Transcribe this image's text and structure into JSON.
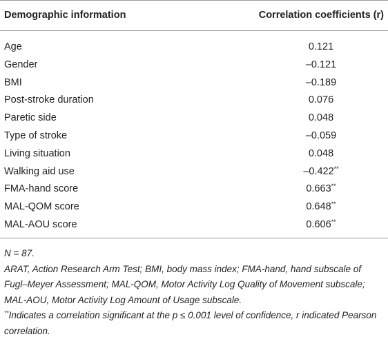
{
  "table": {
    "header": [
      "Demographic information",
      "Correlation coefficients (r)"
    ],
    "rows": [
      {
        "label": "Age",
        "value": "0.121"
      },
      {
        "label": "Gender",
        "value": "–0.121"
      },
      {
        "label": "BMI",
        "value": "–0.189"
      },
      {
        "label": "Post-stroke duration",
        "value": "0.076"
      },
      {
        "label": "Paretic side",
        "value": "0.048"
      },
      {
        "label": "Type of stroke",
        "value": "–0.059"
      },
      {
        "label": "Living situation",
        "value": "0.048"
      },
      {
        "label": "Walking aid use",
        "value": "–0.422",
        "sig": "**"
      },
      {
        "label": "FMA-hand score",
        "value": "0.663",
        "sig": "**"
      },
      {
        "label": "MAL-QOM score",
        "value": "0.648",
        "sig": "**"
      },
      {
        "label": "MAL-AOU score",
        "value": "0.606",
        "sig": "**"
      }
    ]
  },
  "notes": {
    "sample": "N = 87.",
    "abbreviations": "ARAT, Action Research Arm Test; BMI, body mass index; FMA-hand, hand subscale of Fugl–Meyer Assessment; MAL-QOM, Motor Activity Log Quality of Movement subscale; MAL-AOU, Motor Activity Log Amount of Usage subscale.",
    "footnote": {
      "marker": "**",
      "text": "Indicates a correlation significant at the p ≤ 0.001 level of confidence, r indicated Pearson correlation."
    }
  }
}
